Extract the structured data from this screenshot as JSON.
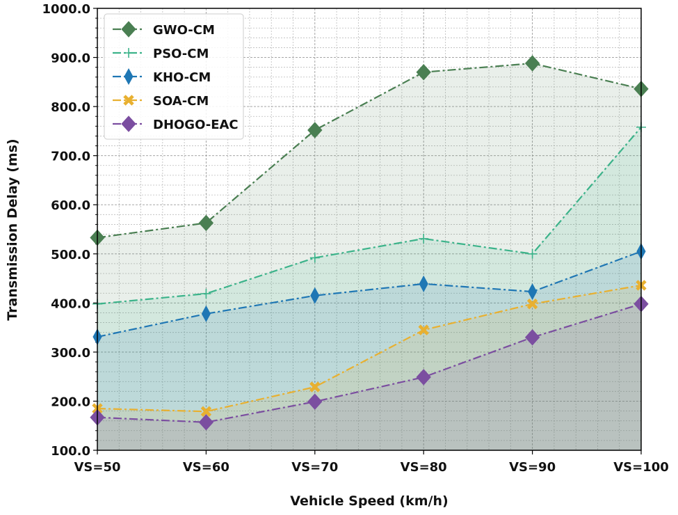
{
  "chart_data": {
    "type": "line",
    "x_label": "Vehicle Speed (km/h)",
    "y_label": "Transmission Delay (ms)",
    "categories": [
      "VS=50",
      "VS=60",
      "VS=70",
      "VS=80",
      "VS=90",
      "VS=100"
    ],
    "ylim": [
      100,
      1000
    ],
    "yticks": [
      {
        "value": 100,
        "label": "100.0"
      },
      {
        "value": 200,
        "label": "200.0"
      },
      {
        "value": 300,
        "label": "300.0"
      },
      {
        "value": 400,
        "label": "400.0"
      },
      {
        "value": 500,
        "label": "500.0"
      },
      {
        "value": 600,
        "label": "600.0"
      },
      {
        "value": 700,
        "label": "700.0"
      },
      {
        "value": 800,
        "label": "800.0"
      },
      {
        "value": 900,
        "label": "900.0"
      },
      {
        "value": 1000,
        "label": "1000.0"
      }
    ],
    "grid": true,
    "legend": "upper left",
    "series": [
      {
        "name": "GWO-CM",
        "color": "#4a7f52",
        "marker": "diamond",
        "values": [
          533,
          563,
          752,
          870,
          888,
          836
        ]
      },
      {
        "name": "PSO-CM",
        "color": "#3cb38a",
        "marker": "plus",
        "values": [
          398,
          419,
          492,
          531,
          500,
          758
        ]
      },
      {
        "name": "KHO-CM",
        "color": "#1f77b4",
        "marker": "thin-diamond",
        "values": [
          331,
          378,
          415,
          439,
          423,
          505
        ]
      },
      {
        "name": "SOA-CM",
        "color": "#e8b030",
        "marker": "x",
        "values": [
          185,
          179,
          229,
          345,
          398,
          436
        ]
      },
      {
        "name": "DHOGO-EAC",
        "color": "#7b4ea0",
        "marker": "diamond",
        "values": [
          167,
          157,
          199,
          249,
          330,
          398
        ]
      }
    ]
  }
}
